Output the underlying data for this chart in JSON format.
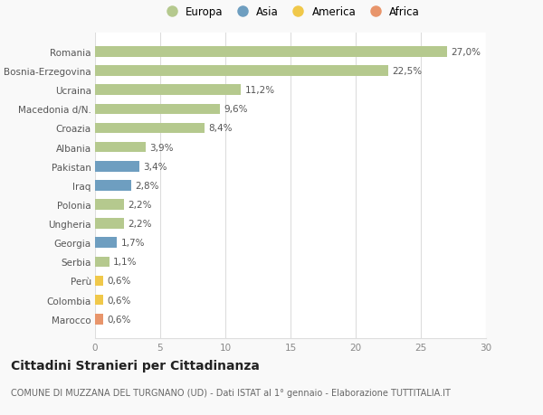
{
  "categories": [
    "Romania",
    "Bosnia-Erzegovina",
    "Ucraina",
    "Macedonia d/N.",
    "Croazia",
    "Albania",
    "Pakistan",
    "Iraq",
    "Polonia",
    "Ungheria",
    "Georgia",
    "Serbia",
    "Perù",
    "Colombia",
    "Marocco"
  ],
  "values": [
    27.0,
    22.5,
    11.2,
    9.6,
    8.4,
    3.9,
    3.4,
    2.8,
    2.2,
    2.2,
    1.7,
    1.1,
    0.6,
    0.6,
    0.6
  ],
  "labels": [
    "27,0%",
    "22,5%",
    "11,2%",
    "9,6%",
    "8,4%",
    "3,9%",
    "3,4%",
    "2,8%",
    "2,2%",
    "2,2%",
    "1,7%",
    "1,1%",
    "0,6%",
    "0,6%",
    "0,6%"
  ],
  "continents": [
    "Europa",
    "Europa",
    "Europa",
    "Europa",
    "Europa",
    "Europa",
    "Asia",
    "Asia",
    "Europa",
    "Europa",
    "Asia",
    "Europa",
    "America",
    "America",
    "Africa"
  ],
  "continent_colors": {
    "Europa": "#b5c98e",
    "Asia": "#6e9ec0",
    "America": "#f0c84a",
    "Africa": "#e8956b"
  },
  "legend_order": [
    "Europa",
    "Asia",
    "America",
    "Africa"
  ],
  "legend_colors": [
    "#b5c98e",
    "#6e9ec0",
    "#f0c84a",
    "#e8956b"
  ],
  "xlim": [
    0,
    30
  ],
  "xticks": [
    0,
    5,
    10,
    15,
    20,
    25,
    30
  ],
  "title": "Cittadini Stranieri per Cittadinanza",
  "subtitle": "COMUNE DI MUZZANA DEL TURGNANO (UD) - Dati ISTAT al 1° gennaio - Elaborazione TUTTITALIA.IT",
  "bg_color": "#f9f9f9",
  "plot_bg_color": "#ffffff",
  "grid_color": "#dddddd",
  "bar_height": 0.55,
  "label_fontsize": 7.5,
  "tick_fontsize": 7.5,
  "title_fontsize": 10,
  "subtitle_fontsize": 7,
  "legend_fontsize": 8.5
}
